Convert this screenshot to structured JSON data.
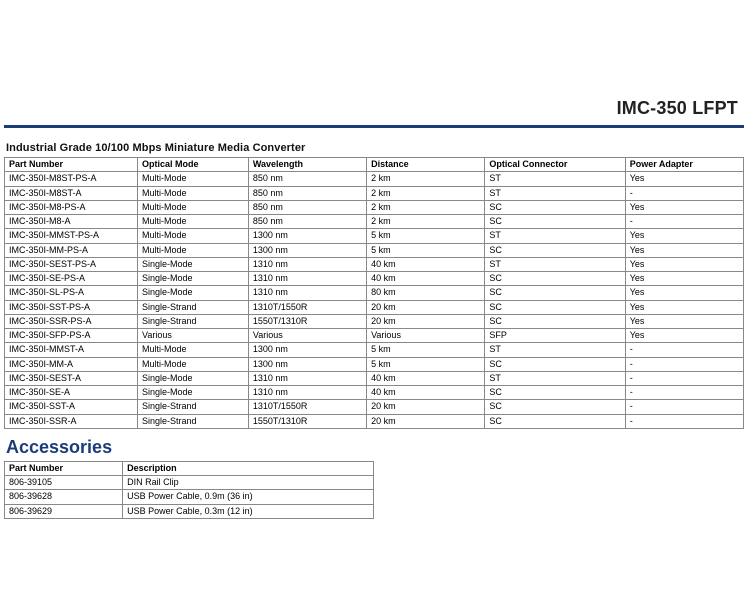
{
  "header": {
    "product_title": "IMC-350 LFPT"
  },
  "main_section": {
    "title": "Industrial Grade 10/100 Mbps Miniature Media Converter",
    "columns": [
      "Part Number",
      "Optical Mode",
      "Wavelength",
      "Distance",
      "Optical Connector",
      "Power Adapter"
    ],
    "rows": [
      [
        "IMC-350I-M8ST-PS-A",
        "Multi-Mode",
        "850 nm",
        "2 km",
        "ST",
        "Yes"
      ],
      [
        "IMC-350I-M8ST-A",
        "Multi-Mode",
        "850 nm",
        "2 km",
        "ST",
        "-"
      ],
      [
        "IMC-350I-M8-PS-A",
        "Multi-Mode",
        "850 nm",
        "2 km",
        "SC",
        "Yes"
      ],
      [
        "IMC-350I-M8-A",
        "Multi-Mode",
        "850 nm",
        "2 km",
        "SC",
        "-"
      ],
      [
        "IMC-350I-MMST-PS-A",
        "Multi-Mode",
        "1300 nm",
        "5 km",
        "ST",
        "Yes"
      ],
      [
        "IMC-350I-MM-PS-A",
        "Multi-Mode",
        "1300 nm",
        "5 km",
        "SC",
        "Yes"
      ],
      [
        "IMC-350I-SEST-PS-A",
        "Single-Mode",
        "1310 nm",
        "40 km",
        "ST",
        "Yes"
      ],
      [
        "IMC-350I-SE-PS-A",
        "Single-Mode",
        "1310 nm",
        "40 km",
        "SC",
        "Yes"
      ],
      [
        "IMC-350I-SL-PS-A",
        "Single-Mode",
        "1310 nm",
        "80 km",
        "SC",
        "Yes"
      ],
      [
        "IMC-350I-SST-PS-A",
        "Single-Strand",
        "1310T/1550R",
        "20 km",
        "SC",
        "Yes"
      ],
      [
        "IMC-350I-SSR-PS-A",
        "Single-Strand",
        "1550T/1310R",
        "20 km",
        "SC",
        "Yes"
      ],
      [
        "IMC-350I-SFP-PS-A",
        "Various",
        "Various",
        "Various",
        "SFP",
        "Yes"
      ],
      [
        "IMC-350I-MMST-A",
        "Multi-Mode",
        "1300 nm",
        "5 km",
        "ST",
        "-"
      ],
      [
        "IMC-350I-MM-A",
        "Multi-Mode",
        "1300 nm",
        "5 km",
        "SC",
        "-"
      ],
      [
        "IMC-350I-SEST-A",
        "Single-Mode",
        "1310 nm",
        "40 km",
        "ST",
        "-"
      ],
      [
        "IMC-350I-SE-A",
        "Single-Mode",
        "1310 nm",
        "40 km",
        "SC",
        "-"
      ],
      [
        "IMC-350I-SST-A",
        "Single-Strand",
        "1310T/1550R",
        "20 km",
        "SC",
        "-"
      ],
      [
        "IMC-350I-SSR-A",
        "Single-Strand",
        "1550T/1310R",
        "20 km",
        "SC",
        "-"
      ]
    ]
  },
  "accessories": {
    "heading": "Accessories",
    "columns": [
      "Part Number",
      "Description"
    ],
    "rows": [
      [
        "806-39105",
        "DIN Rail Clip"
      ],
      [
        "806-39628",
        "USB Power Cable, 0.9m (36 in)"
      ],
      [
        "806-39629",
        "USB Power Cable, 0.3m (12 in)"
      ]
    ]
  },
  "style": {
    "rule_color": "#1a3d7a",
    "heading_color": "#1a3d7a",
    "border_color": "#888888",
    "bg_color": "#ffffff",
    "body_fontsize": 9,
    "title_fontsize": 18,
    "section_title_fontsize": 11
  }
}
